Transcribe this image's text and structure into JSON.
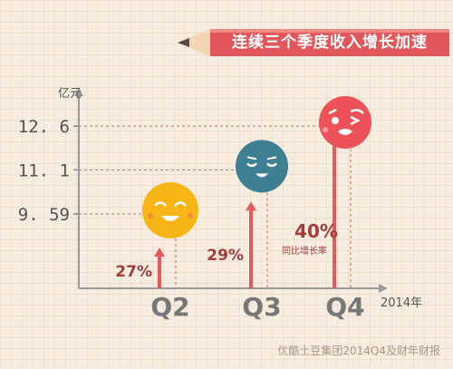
{
  "banner": {
    "title": "连续三个季度收入增长加速"
  },
  "source": "优酷土豆集团2014Q4及财年财报",
  "colors": {
    "axis": "#9a9a9a",
    "guide": "#c86a5a",
    "arrow": "#e4595c",
    "q2_face": "#f7b615",
    "q3_face": "#3e7f92",
    "q4_face": "#ec5257",
    "banner": "#e2575b",
    "label": "#a33d3d",
    "tick_text": "#555555"
  },
  "chart_data": {
    "type": "bar",
    "title": "连续三个季度收入增长加速",
    "ylabel": "亿元",
    "xlabel": "2014年",
    "categories": [
      "Q2",
      "Q3",
      "Q4"
    ],
    "values": [
      9.59,
      11.1,
      12.6
    ],
    "value_labels": [
      "9. 59",
      "11. 1",
      "12. 6"
    ],
    "growth": [
      "27%",
      "29%",
      "40%"
    ],
    "growth_note": "同比增长率",
    "faces": [
      "smile-face-icon",
      "calm-face-icon",
      "wink-face-icon"
    ]
  }
}
